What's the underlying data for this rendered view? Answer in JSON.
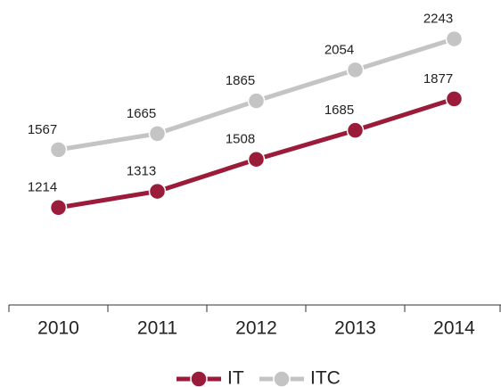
{
  "chart_data": {
    "type": "line",
    "categories": [
      "2010",
      "2011",
      "2012",
      "2013",
      "2014"
    ],
    "series": [
      {
        "name": "IT",
        "color": "#9b1b3a",
        "values": [
          1214,
          1313,
          1508,
          1685,
          1877
        ]
      },
      {
        "name": "ITC",
        "color": "#c4c4c4",
        "values": [
          1567,
          1665,
          1865,
          2054,
          2243
        ]
      }
    ],
    "ylim": [
      620,
      2480
    ],
    "grid": false,
    "legend": "bottom"
  }
}
